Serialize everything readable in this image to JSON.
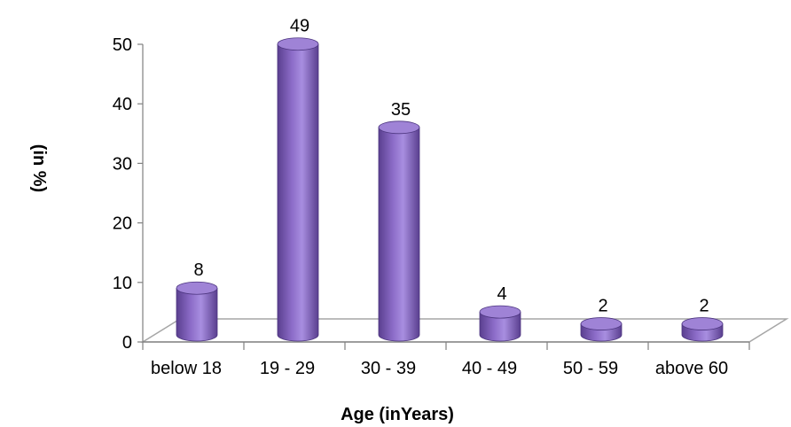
{
  "chart_data": {
    "type": "bar",
    "categories": [
      "below 18",
      "19 - 29",
      "30 - 39",
      "40 - 49",
      "50 - 59",
      "above 60"
    ],
    "values": [
      8,
      49,
      35,
      4,
      2,
      2
    ],
    "data_labels": [
      "8",
      "49",
      "35",
      "4",
      "2",
      "2"
    ],
    "xlabel": "Age (inYears)",
    "ylabel": "(in %)",
    "ylim": [
      0,
      50
    ],
    "yticks": [
      "0",
      "10",
      "20",
      "30",
      "40",
      "50"
    ],
    "grid": false,
    "legend": "none",
    "style": "3d-cylinder",
    "colors": {
      "bar": "#8c6cc8",
      "bar_dark": "#5a3f8f",
      "bar_top": "#9f83d6",
      "floor": "#a6a6a6"
    }
  }
}
